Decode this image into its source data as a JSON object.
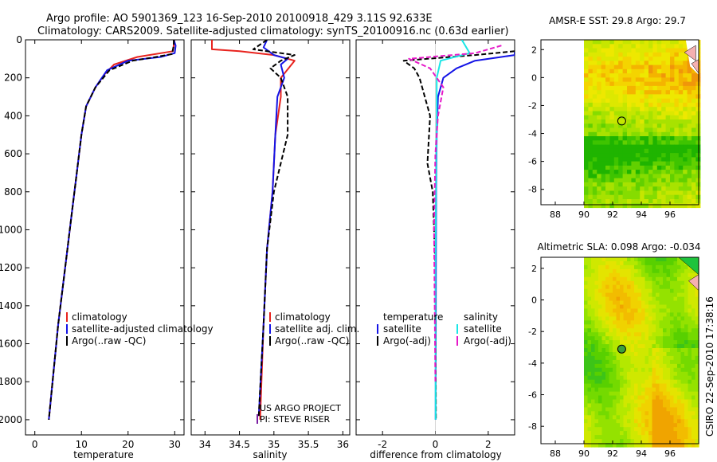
{
  "header": {
    "line1": "Argo profile: AO 5901369_123 16-Sep-2010 20100918_429 3.11S 92.633E",
    "line2": "Climatology: CARS2009. Satellite-adjusted climatology: synTS_20100916.nc (0.63d earlier)"
  },
  "side_label": "CSIRO 22-Sep-2010 17:38:16",
  "colors": {
    "red": "#e8231e",
    "blue": "#1414e6",
    "black": "#000000",
    "cyan": "#19e6e6",
    "magenta": "#e619c8"
  },
  "chart_data": [
    {
      "type": "line",
      "id": "temperature",
      "xlabel": "temperature",
      "xlim": [
        -2,
        32
      ],
      "ylim": [
        0,
        2080
      ],
      "xticks": [
        "0",
        "10",
        "20",
        "30"
      ],
      "xtick_values": [
        0,
        10,
        20,
        30
      ],
      "yticks": [
        "0",
        "200",
        "400",
        "600",
        "800",
        "1000",
        "1200",
        "1400",
        "1600",
        "1800",
        "2000"
      ],
      "ytick_values": [
        0,
        200,
        400,
        600,
        800,
        1000,
        1200,
        1400,
        1600,
        1800,
        2000
      ],
      "legend": [
        "climatology",
        "satellite-adjusted climatology",
        "Argo(..raw -QC)"
      ],
      "series": [
        {
          "name": "climatology",
          "color": "red",
          "x": [
            29.9,
            29.8,
            29.6,
            22,
            17,
            15,
            13,
            11,
            10,
            9,
            8,
            7,
            5,
            3
          ],
          "y": [
            0,
            30,
            60,
            90,
            130,
            180,
            250,
            350,
            500,
            700,
            900,
            1100,
            1500,
            2000
          ]
        },
        {
          "name": "satellite-adjusted climatology",
          "color": "blue",
          "x": [
            29.8,
            30.2,
            30,
            27,
            20,
            15.5,
            13,
            11,
            10,
            9,
            8,
            7,
            5,
            3
          ],
          "y": [
            0,
            30,
            70,
            90,
            110,
            160,
            250,
            350,
            500,
            700,
            900,
            1100,
            1500,
            2000
          ]
        },
        {
          "name": "Argo(..raw -QC)",
          "color": "black",
          "dash": true,
          "x": [
            29.8,
            29.8,
            29.4,
            26,
            21,
            16,
            13,
            11,
            10,
            9,
            8,
            7,
            5,
            3
          ],
          "y": [
            0,
            30,
            75,
            90,
            110,
            160,
            250,
            350,
            500,
            700,
            900,
            1100,
            1500,
            2000
          ]
        }
      ]
    },
    {
      "type": "line",
      "id": "salinity",
      "xlabel": "salinity",
      "xlim": [
        33.8,
        36.1
      ],
      "ylim": [
        0,
        2080
      ],
      "xticks": [
        "34",
        "34.5",
        "35",
        "35.5",
        "36"
      ],
      "xtick_values": [
        34,
        34.5,
        35,
        35.5,
        36
      ],
      "legend": [
        "climatology",
        "satellite adj. clim.",
        "Argo(..raw -QC)"
      ],
      "note": [
        "US ARGO PROJECT",
        "PI: STEVE RISER"
      ],
      "series": [
        {
          "name": "climatology",
          "color": "red",
          "x": [
            34.1,
            34.1,
            34.5,
            35.0,
            35.3,
            35.1,
            35.1,
            35.02,
            34.98,
            34.9,
            34.85,
            34.8
          ],
          "y": [
            0,
            50,
            60,
            80,
            110,
            200,
            300,
            500,
            800,
            1100,
            1500,
            2000
          ]
        },
        {
          "name": "satellite adj. clim.",
          "color": "blue",
          "x": [
            34.9,
            34.85,
            35.0,
            35.2,
            35.1,
            35.15,
            35.05,
            35.02,
            34.98,
            34.9,
            34.85,
            34.78
          ],
          "y": [
            0,
            40,
            80,
            100,
            130,
            200,
            300,
            500,
            800,
            1100,
            1500,
            1980
          ]
        },
        {
          "name": "Argo(..raw -QC)",
          "color": "black",
          "dash": true,
          "x": [
            34.9,
            34.7,
            35.3,
            35.1,
            34.95,
            35.1,
            35.2,
            35.2,
            35.0,
            34.9,
            34.85,
            34.78
          ],
          "y": [
            0,
            50,
            80,
            110,
            150,
            200,
            300,
            500,
            800,
            1100,
            1500,
            1980
          ]
        }
      ]
    },
    {
      "type": "line",
      "id": "difference",
      "xlabel": "difference from climatology",
      "xlim": [
        -3,
        3
      ],
      "ylim": [
        0,
        2080
      ],
      "xticks": [
        "-2",
        "0",
        "2"
      ],
      "xtick_values": [
        -2,
        0,
        2
      ],
      "legend_titles": [
        "temperature",
        "salinity"
      ],
      "legend": [
        "satellite",
        "Argo(-adj)",
        "satellite",
        "Argo(-adj)"
      ],
      "series": [
        {
          "name": "temperature satellite",
          "color": "blue",
          "x": [
            3,
            3,
            2.5,
            1.5,
            0.8,
            0.3,
            0.1,
            0.05,
            0.03,
            0.02,
            0.01
          ],
          "y": [
            60,
            80,
            90,
            110,
            150,
            200,
            300,
            500,
            800,
            1200,
            2000
          ]
        },
        {
          "name": "temperature Argo(-adj)",
          "color": "black",
          "dash": true,
          "x": [
            3,
            1.5,
            -1.2,
            -0.8,
            -0.6,
            -0.4,
            -0.2,
            -0.3,
            -0.1,
            0,
            0.02
          ],
          "y": [
            60,
            80,
            110,
            150,
            200,
            300,
            400,
            650,
            800,
            1200,
            2000
          ]
        },
        {
          "name": "salinity satellite",
          "color": "cyan",
          "x": [
            1,
            1.3,
            0.2,
            0.05,
            0.05,
            0.02,
            0,
            0.01
          ],
          "y": [
            0,
            70,
            110,
            200,
            400,
            800,
            1200,
            2000
          ]
        },
        {
          "name": "salinity Argo(-adj)",
          "color": "magenta",
          "dash": true,
          "x": [
            2.5,
            1.5,
            -1,
            -0.2,
            0.3,
            0.1,
            0,
            -0.05,
            0
          ],
          "y": [
            30,
            70,
            100,
            150,
            250,
            400,
            600,
            1000,
            1800
          ]
        }
      ]
    },
    {
      "type": "heatmap",
      "id": "amsre",
      "title": "AMSR-E SST: 29.8 Argo: 29.7",
      "xlim": [
        87,
        98
      ],
      "ylim": [
        -9.1,
        2.7
      ],
      "xticks": [
        "88",
        "90",
        "92",
        "94",
        "96"
      ],
      "xtick_values": [
        88,
        90,
        92,
        94,
        96
      ],
      "yticks": [
        "2",
        "0",
        "-2",
        "-4",
        "-6",
        "-8"
      ],
      "ytick_values": [
        2,
        0,
        -2,
        -4,
        -6,
        -8
      ],
      "data_x_range": [
        90,
        97.8
      ],
      "marker": {
        "lon": 92.633,
        "lat": -3.11,
        "filled": false
      }
    },
    {
      "type": "heatmap",
      "id": "altimetric",
      "title": "Altimetric SLA: 0.098 Argo: -0.034",
      "xlim": [
        87,
        98
      ],
      "ylim": [
        -9.1,
        2.7
      ],
      "xticks": [
        "88",
        "90",
        "92",
        "94",
        "96"
      ],
      "xtick_values": [
        88,
        90,
        92,
        94,
        96
      ],
      "yticks": [
        "2",
        "0",
        "-2",
        "-4",
        "-6",
        "-8"
      ],
      "ytick_values": [
        2,
        0,
        -2,
        -4,
        -6,
        -8
      ],
      "data_x_range": [
        90,
        97.8
      ],
      "marker": {
        "lon": 92.633,
        "lat": -3.11,
        "filled": true
      }
    }
  ]
}
